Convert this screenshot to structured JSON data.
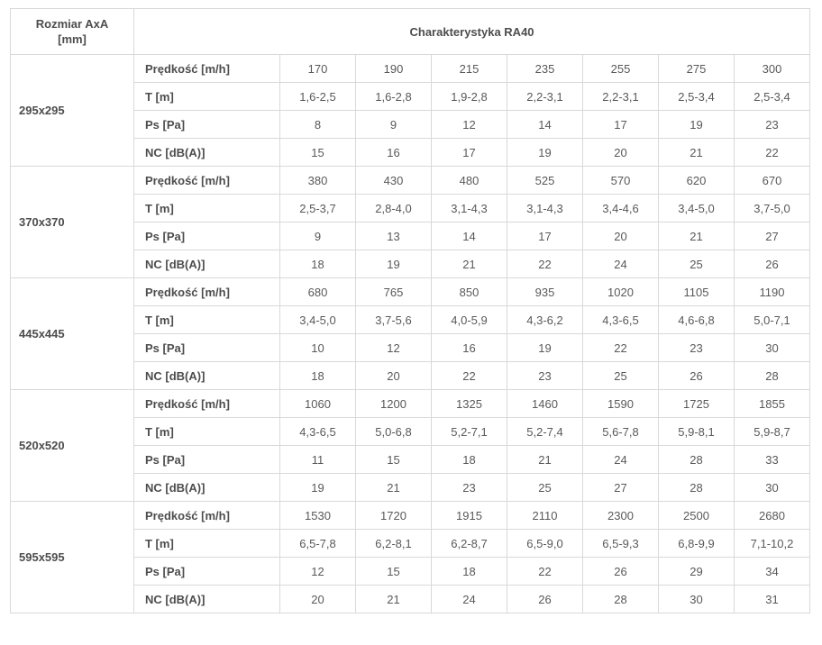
{
  "colors": {
    "background": "#ffffff",
    "border": "#d9d9d9",
    "header_text": "#4d4d4d",
    "value_text": "#595959"
  },
  "chart_data": {
    "type": "table",
    "title": "Charakterystyka RA40",
    "corner_header_line1": "Rozmiar AxA",
    "corner_header_line2": "[mm]",
    "row_labels": [
      "Prędkość [m/h]",
      "T [m]",
      "Ps [Pa]",
      "NC [dB(A)]"
    ],
    "groups": [
      {
        "size": "295x295",
        "rows": [
          [
            "170",
            "190",
            "215",
            "235",
            "255",
            "275",
            "300"
          ],
          [
            "1,6-2,5",
            "1,6-2,8",
            "1,9-2,8",
            "2,2-3,1",
            "2,2-3,1",
            "2,5-3,4",
            "2,5-3,4"
          ],
          [
            "8",
            "9",
            "12",
            "14",
            "17",
            "19",
            "23"
          ],
          [
            "15",
            "16",
            "17",
            "19",
            "20",
            "21",
            "22"
          ]
        ]
      },
      {
        "size": "370x370",
        "rows": [
          [
            "380",
            "430",
            "480",
            "525",
            "570",
            "620",
            "670"
          ],
          [
            "2,5-3,7",
            "2,8-4,0",
            "3,1-4,3",
            "3,1-4,3",
            "3,4-4,6",
            "3,4-5,0",
            "3,7-5,0"
          ],
          [
            "9",
            "13",
            "14",
            "17",
            "20",
            "21",
            "27"
          ],
          [
            "18",
            "19",
            "21",
            "22",
            "24",
            "25",
            "26"
          ]
        ]
      },
      {
        "size": "445x445",
        "rows": [
          [
            "680",
            "765",
            "850",
            "935",
            "1020",
            "1105",
            "1190"
          ],
          [
            "3,4-5,0",
            "3,7-5,6",
            "4,0-5,9",
            "4,3-6,2",
            "4,3-6,5",
            "4,6-6,8",
            "5,0-7,1"
          ],
          [
            "10",
            "12",
            "16",
            "19",
            "22",
            "23",
            "30"
          ],
          [
            "18",
            "20",
            "22",
            "23",
            "25",
            "26",
            "28"
          ]
        ]
      },
      {
        "size": "520x520",
        "rows": [
          [
            "1060",
            "1200",
            "1325",
            "1460",
            "1590",
            "1725",
            "1855"
          ],
          [
            "4,3-6,5",
            "5,0-6,8",
            "5,2-7,1",
            "5,2-7,4",
            "5,6-7,8",
            "5,9-8,1",
            "5,9-8,7"
          ],
          [
            "11",
            "15",
            "18",
            "21",
            "24",
            "28",
            "33"
          ],
          [
            "19",
            "21",
            "23",
            "25",
            "27",
            "28",
            "30"
          ]
        ]
      },
      {
        "size": "595x595",
        "rows": [
          [
            "1530",
            "1720",
            "1915",
            "2110",
            "2300",
            "2500",
            "2680"
          ],
          [
            "6,5-7,8",
            "6,2-8,1",
            "6,2-8,7",
            "6,5-9,0",
            "6,5-9,3",
            "6,8-9,9",
            "7,1-10,2"
          ],
          [
            "12",
            "15",
            "18",
            "22",
            "26",
            "29",
            "34"
          ],
          [
            "20",
            "21",
            "24",
            "26",
            "28",
            "30",
            "31"
          ]
        ]
      }
    ]
  }
}
